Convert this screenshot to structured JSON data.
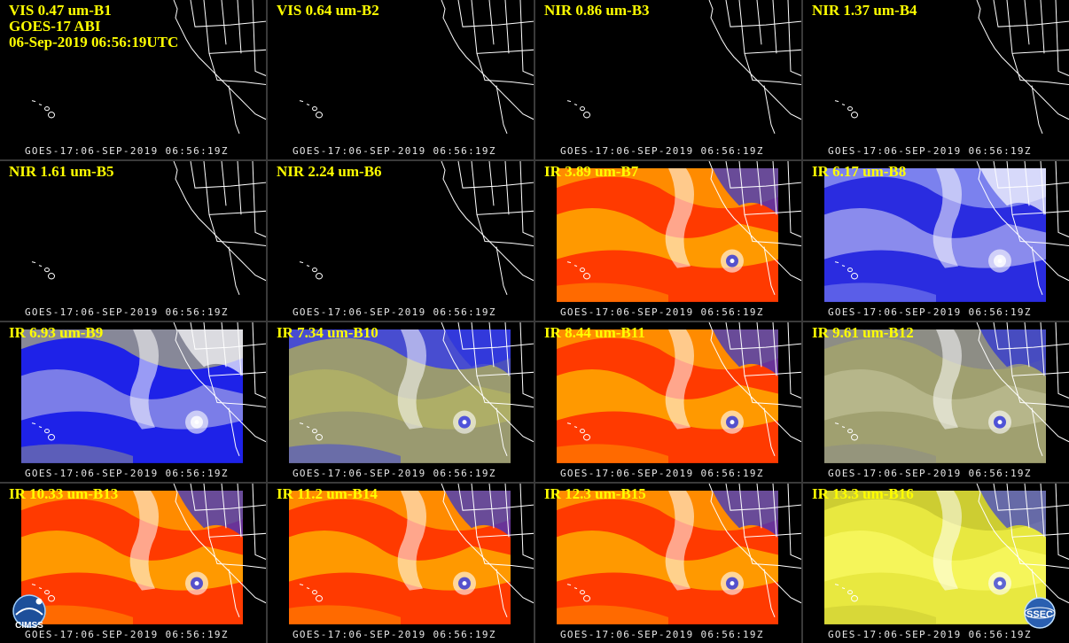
{
  "header": {
    "satellite": "GOES-17 ABI",
    "date_time": "06-Sep-2019 06:56:19UTC"
  },
  "timestamp": "GOES-17:06-SEP-2019 06:56:19Z",
  "panels": [
    {
      "label": "VIS 0.47 um-B1",
      "style": "dark"
    },
    {
      "label": "VIS 0.64 um-B2",
      "style": "dark"
    },
    {
      "label": "NIR 0.86 um-B3",
      "style": "dark"
    },
    {
      "label": "NIR 1.37 um-B4",
      "style": "dark"
    },
    {
      "label": "NIR 1.61 um-B5",
      "style": "dark"
    },
    {
      "label": "NIR 2.24 um-B6",
      "style": "dark"
    },
    {
      "label": "IR 3.89 um-B7",
      "style": "ir-warm"
    },
    {
      "label": "IR 6.17 um-B8",
      "style": "wv-white"
    },
    {
      "label": "IR 6.93 um-B9",
      "style": "wv-blue"
    },
    {
      "label": "IR 7.34 um-B10",
      "style": "wv-olive"
    },
    {
      "label": "IR 8.44 um-B11",
      "style": "ir-warm"
    },
    {
      "label": "IR 9.61 um-B12",
      "style": "ir-gray"
    },
    {
      "label": "IR 10.33 um-B13",
      "style": "ir-warm"
    },
    {
      "label": "IR 11.2 um-B14",
      "style": "ir-warm"
    },
    {
      "label": "IR 12.3 um-B15",
      "style": "ir-warm"
    },
    {
      "label": "IR 13.3 um-B16",
      "style": "ir-yellow"
    }
  ],
  "logos": {
    "left": "CIMSS",
    "right": "SSEC"
  },
  "colors": {
    "label_text": "#ffff00",
    "timestamp_text": "#e6e6e6",
    "background": "#000000"
  }
}
